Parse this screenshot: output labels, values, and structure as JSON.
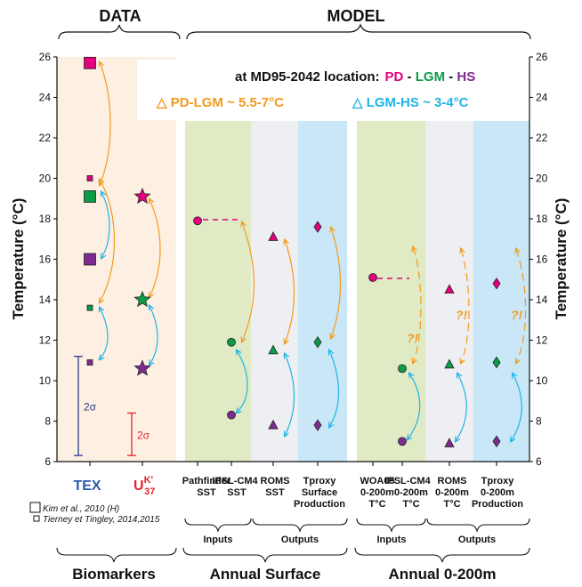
{
  "chart_data": {
    "type": "scatter",
    "ylabel": "Temperature (°C)",
    "ylim": [
      6,
      26
    ],
    "yticks": [
      6,
      8,
      10,
      12,
      14,
      16,
      18,
      20,
      22,
      24,
      26
    ],
    "grid": false,
    "headers": {
      "data": "DATA",
      "model": "MODEL"
    },
    "legend": {
      "location": "at MD95-2042 location:",
      "pd": "PD",
      "dash1": " - ",
      "lgm": "LGM",
      "dash2": " - ",
      "hs": "HS",
      "delta_pd_lgm": "△ PD-LGM ~ 5.5-7°C",
      "delta_lgm_hs": "△ LGM-HS ~ 3-4°C"
    },
    "colors": {
      "pd": "#e4007c",
      "lgm": "#0a9c47",
      "hs": "#7f2a8f",
      "orange": "#f39a1e",
      "blue": "#1fb4e5",
      "tex": "#2a5aa8",
      "uk": "#e3232c"
    },
    "columns": [
      {
        "id": "tex",
        "label": "TEX"
      },
      {
        "id": "uk37",
        "label_base": "U",
        "label_sup": "K'",
        "label_sub": "37"
      },
      {
        "id": "pathfinder",
        "line1": "Pathfinder",
        "line2": "SST"
      },
      {
        "id": "ipsl_sst",
        "line1": "IPSL-CM4",
        "line2": "SST"
      },
      {
        "id": "roms_sst",
        "line1": "ROMS",
        "line2": "SST"
      },
      {
        "id": "tproxy_surf",
        "line1": "Tproxy",
        "line2": "Surface",
        "line3": "Production"
      },
      {
        "id": "woa05",
        "line1": "WOA05",
        "line2": "0-200m",
        "line3": "T°C"
      },
      {
        "id": "ipsl_200",
        "line1": "IPSL-CM4",
        "line2": "0-200m",
        "line3": "T°C"
      },
      {
        "id": "roms_200",
        "line1": "ROMS",
        "line2": "0-200m",
        "line3": "T°C"
      },
      {
        "id": "tproxy_200",
        "line1": "Tproxy",
        "line2": "0-200m",
        "line3": "Production"
      }
    ],
    "series": [
      {
        "column": "tex",
        "points": [
          {
            "period": "PD",
            "value": 25.7,
            "marker": "square-large"
          },
          {
            "period": "PD",
            "value": 20.0,
            "marker": "square-small"
          },
          {
            "period": "LGM",
            "value": 19.1,
            "marker": "square-large"
          },
          {
            "period": "HS",
            "value": 16.0,
            "marker": "square-large"
          },
          {
            "period": "LGM",
            "value": 13.6,
            "marker": "square-small"
          },
          {
            "period": "HS",
            "value": 10.9,
            "marker": "square-small"
          }
        ]
      },
      {
        "column": "uk37",
        "points": [
          {
            "period": "PD",
            "value": 19.1,
            "marker": "star"
          },
          {
            "period": "LGM",
            "value": 14.0,
            "marker": "star"
          },
          {
            "period": "HS",
            "value": 10.6,
            "marker": "star"
          }
        ]
      },
      {
        "column": "pathfinder",
        "points": [
          {
            "period": "PD",
            "value": 17.9,
            "marker": "circle"
          }
        ]
      },
      {
        "column": "ipsl_sst",
        "points": [
          {
            "period": "LGM",
            "value": 11.9,
            "marker": "circle"
          },
          {
            "period": "HS",
            "value": 8.3,
            "marker": "circle"
          }
        ]
      },
      {
        "column": "roms_sst",
        "points": [
          {
            "period": "PD",
            "value": 17.1,
            "marker": "triangle"
          },
          {
            "period": "LGM",
            "value": 11.5,
            "marker": "triangle"
          },
          {
            "period": "HS",
            "value": 7.8,
            "marker": "triangle"
          }
        ]
      },
      {
        "column": "tproxy_surf",
        "points": [
          {
            "period": "PD",
            "value": 17.6,
            "marker": "diamond"
          },
          {
            "period": "LGM",
            "value": 11.9,
            "marker": "diamond"
          },
          {
            "period": "HS",
            "value": 7.8,
            "marker": "diamond"
          }
        ]
      },
      {
        "column": "woa05",
        "points": [
          {
            "period": "PD",
            "value": 15.1,
            "marker": "circle"
          }
        ]
      },
      {
        "column": "ipsl_200",
        "points": [
          {
            "period": "LGM",
            "value": 10.6,
            "marker": "circle"
          },
          {
            "period": "HS",
            "value": 7.0,
            "marker": "circle"
          }
        ]
      },
      {
        "column": "roms_200",
        "points": [
          {
            "period": "PD",
            "value": 14.5,
            "marker": "triangle"
          },
          {
            "period": "LGM",
            "value": 10.8,
            "marker": "triangle"
          },
          {
            "period": "HS",
            "value": 6.9,
            "marker": "triangle"
          }
        ]
      },
      {
        "column": "tproxy_200",
        "points": [
          {
            "period": "PD",
            "value": 14.8,
            "marker": "diamond"
          },
          {
            "period": "LGM",
            "value": 10.9,
            "marker": "diamond"
          },
          {
            "period": "HS",
            "value": 7.0,
            "marker": "diamond"
          }
        ]
      }
    ],
    "error_bars": [
      {
        "column": "tex",
        "low": 6.3,
        "high": 11.2,
        "label": "2σ",
        "color": "#2a3d8f"
      },
      {
        "column": "uk37",
        "low": 6.3,
        "high": 8.4,
        "label": "2σ",
        "color": "#e3232c"
      }
    ],
    "question_marks": [
      "?!",
      "?!",
      "?!"
    ],
    "groups": {
      "inputs": "Inputs",
      "outputs": "Outputs",
      "biomarkers": "Biomarkers",
      "annual_surface": "Annual Surface",
      "annual_200": "Annual 0-200m"
    },
    "refs": {
      "kim": "Kim et al., 2010 (H)",
      "tierney": "Tierney et Tingley, 2014,2015"
    }
  }
}
